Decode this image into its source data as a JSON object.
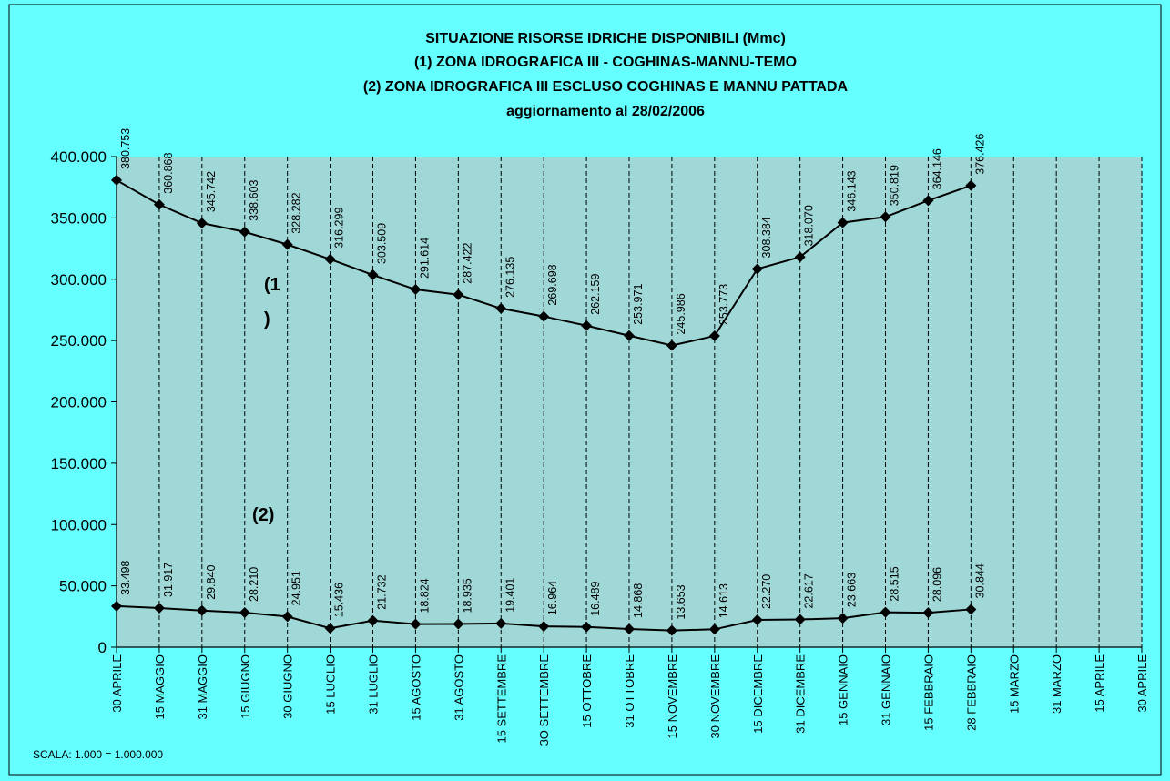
{
  "chart_data": {
    "type": "line",
    "title": [
      "SITUAZIONE RISORSE IDRICHE DISPONIBILI (Mmc)",
      "(1)  ZONA IDROGRAFICA  III - COGHINAS-MANNU-TEMO",
      "(2) ZONA IDROGRAFICA  III  ESCLUSO COGHINAS E MANNU PATTADA",
      "aggiornamento al 28/02/2006"
    ],
    "categories": [
      "30 APRILE",
      "15  MAGGIO",
      "31 MAGGIO",
      "15 GIUGNO",
      "30 GIUGNO",
      "15 LUGLIO",
      "31 LUGLIO",
      "15 AGOSTO",
      "31 AGOSTO",
      "15 SETTEMBRE",
      "3O SETTEMBRE",
      "15 OTTOBRE",
      "31 OTTOBRE",
      "15 NOVEMBRE",
      "30 NOVEMBRE",
      "15 DICEMBRE",
      "31  DICEMBRE",
      "15 GENNAIO",
      "31 GENNAIO",
      "15 FEBBRAIO",
      "28 FEBBRAIO",
      "15 MARZO",
      "31 MARZO",
      "15 APRILE",
      "30 APRILE"
    ],
    "series": [
      {
        "color": "#000000",
        "values": [
          380.753,
          360.868,
          345.742,
          338.603,
          328.282,
          316.299,
          303.509,
          291.614,
          287.422,
          276.135,
          269.698,
          262.159,
          253.971,
          245.986,
          253.773,
          308.384,
          318.07,
          346.143,
          350.819,
          364.146,
          376.426,
          null,
          null,
          null,
          null
        ],
        "value_labels": [
          "380.753",
          "360.868",
          "345.742",
          "338.603",
          "328.282",
          "316.299",
          "303.509",
          "291.614",
          "287.422",
          "276.135",
          "269.698",
          "262.159",
          "253.971",
          "245.986",
          "253.773",
          "308.384",
          "318.070",
          "346.143",
          "350.819",
          "364.146",
          "376.426",
          null,
          null,
          null,
          null
        ]
      },
      {
        "color": "#000000",
        "values": [
          33.498,
          31.917,
          29.84,
          28.21,
          24.951,
          15.436,
          21.732,
          18.824,
          18.935,
          19.401,
          16.964,
          16.489,
          14.868,
          13.653,
          14.613,
          22.27,
          22.617,
          23.663,
          28.515,
          28.096,
          30.844,
          null,
          null,
          null,
          null
        ],
        "value_labels": [
          "33.498",
          "31.917",
          "29.840",
          "28.210",
          "24.951",
          "15.436",
          "21.732",
          "18.824",
          "18.935",
          "19.401",
          "16.964",
          "16.489",
          "14.868",
          "13.653",
          "14.613",
          "22.270",
          "22.617",
          "23.663",
          "28.515",
          "28.096",
          "30.844",
          null,
          null,
          null,
          null
        ]
      }
    ],
    "ylim": [
      0,
      400
    ],
    "yticks": [
      0,
      {
        "value": 50,
        "label": "50.000"
      },
      {
        "value": 100,
        "label": "100.000"
      },
      {
        "value": 150,
        "label": "150.000"
      },
      {
        "value": 200,
        "label": "200.000"
      },
      {
        "value": 250,
        "label": "250.000"
      },
      {
        "value": 300,
        "label": "300.000"
      },
      {
        "value": 350,
        "label": "350.000"
      },
      {
        "value": 400,
        "label": "400.000"
      }
    ],
    "annotations": [
      "(1",
      ")",
      "(2)"
    ],
    "footnote": "SCALA: 1.000 = 1.000.000",
    "plot_color": "#a0d8d8",
    "background": "#66ffff"
  }
}
